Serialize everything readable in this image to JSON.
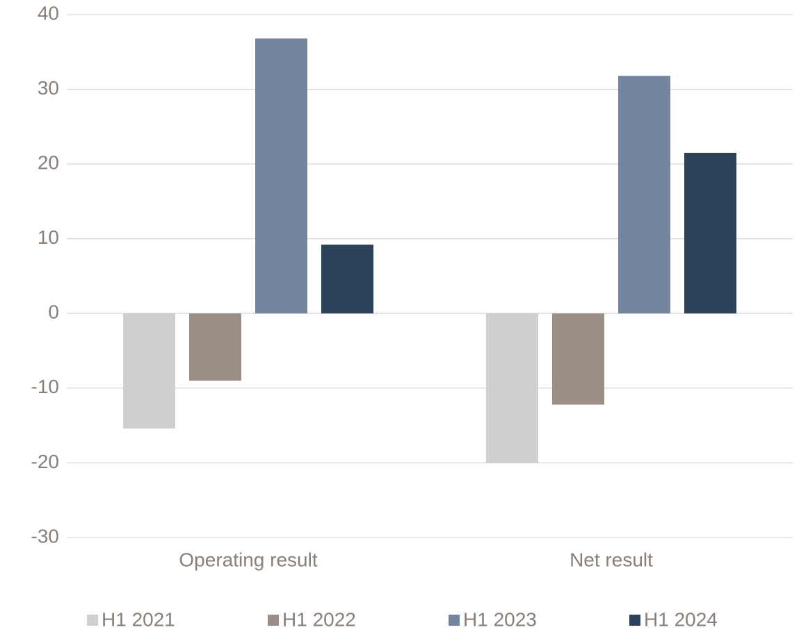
{
  "chart_data": {
    "type": "bar",
    "categories": [
      "Operating result",
      "Net result"
    ],
    "series": [
      {
        "name": "H1 2021",
        "color": "#d0cece",
        "values": [
          -15.4,
          -20.0
        ]
      },
      {
        "name": "H1 2022",
        "color": "#9a8e86",
        "values": [
          -9.0,
          -12.2
        ]
      },
      {
        "name": "H1 2023",
        "color": "#7485a0",
        "values": [
          36.8,
          31.8
        ]
      },
      {
        "name": "H1 2024",
        "color": "#2b4259",
        "values": [
          9.2,
          21.5
        ]
      }
    ],
    "ylim": [
      -30,
      40
    ],
    "yticks": [
      -30,
      -20,
      -10,
      0,
      10,
      20,
      30,
      40
    ],
    "grid": true,
    "legend": "bottom"
  }
}
